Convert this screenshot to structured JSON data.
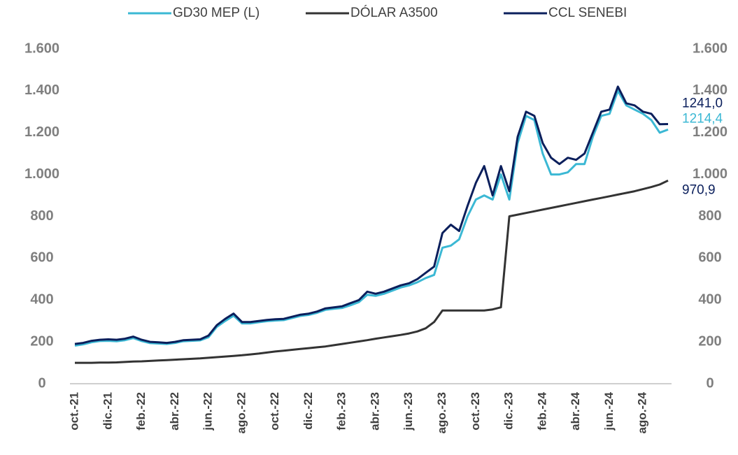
{
  "chart_data": {
    "type": "line",
    "categories": [
      "oct.-21",
      null,
      null,
      null,
      "dic.-21",
      null,
      null,
      null,
      "feb.-22",
      null,
      null,
      null,
      "abr.-22",
      null,
      null,
      null,
      "jun.-22",
      null,
      null,
      null,
      "ago.-22",
      null,
      null,
      null,
      "oct.-22",
      null,
      null,
      null,
      "dic.-22",
      null,
      null,
      null,
      "feb.-23",
      null,
      null,
      null,
      "abr.-23",
      null,
      null,
      null,
      "jun.-23",
      null,
      null,
      null,
      "ago.-23",
      null,
      null,
      null,
      "oct.-23",
      null,
      null,
      null,
      "dic.-23",
      null,
      null,
      null,
      "feb.-24",
      null,
      null,
      null,
      "abr.-24",
      null,
      null,
      null,
      "jun.-24",
      null,
      null,
      null,
      "ago.-24",
      null,
      null,
      null
    ],
    "series": [
      {
        "name": "GD30 MEP (L)",
        "color": "#3bb8d4",
        "values": [
          182,
          188,
          198,
          204,
          205,
          203,
          208,
          218,
          204,
          194,
          192,
          190,
          195,
          203,
          205,
          207,
          222,
          272,
          300,
          325,
          288,
          288,
          294,
          299,
          302,
          304,
          314,
          324,
          329,
          339,
          353,
          358,
          362,
          375,
          390,
          425,
          420,
          430,
          445,
          460,
          470,
          485,
          505,
          520,
          650,
          660,
          690,
          800,
          880,
          900,
          880,
          1000,
          880,
          1150,
          1280,
          1260,
          1100,
          1000,
          1000,
          1010,
          1050,
          1050,
          1180,
          1280,
          1290,
          1400,
          1330,
          1310,
          1290,
          1260,
          1200,
          1214.4
        ],
        "value_labels": [
          null,
          null,
          null,
          null,
          null,
          null,
          null,
          null,
          null,
          null,
          null,
          null,
          null,
          null,
          null,
          null,
          null,
          null,
          null,
          null,
          null,
          null,
          null,
          null,
          null,
          null,
          null,
          null,
          null,
          null,
          null,
          null,
          null,
          null,
          null,
          null,
          null,
          null,
          null,
          null,
          null,
          null,
          null,
          null,
          null,
          null,
          null,
          null,
          null,
          null,
          null,
          null,
          null,
          null,
          null,
          null,
          null,
          null,
          null,
          null,
          null,
          null,
          null,
          null,
          null,
          null,
          null,
          null,
          null,
          null,
          null,
          "1214,4"
        ]
      },
      {
        "name": "DÓLAR A3500",
        "color": "#333333",
        "values": [
          100,
          100,
          100,
          101,
          101,
          102,
          104,
          106,
          107,
          109,
          111,
          113,
          115,
          117,
          119,
          121,
          124,
          127,
          130,
          133,
          136,
          140,
          144,
          149,
          154,
          158,
          162,
          166,
          170,
          174,
          178,
          184,
          190,
          196,
          202,
          208,
          215,
          221,
          227,
          233,
          240,
          250,
          265,
          295,
          350,
          350,
          350,
          350,
          350,
          350,
          355,
          365,
          800,
          808,
          816,
          824,
          832,
          840,
          848,
          856,
          864,
          872,
          880,
          888,
          896,
          904,
          912,
          920,
          930,
          940,
          952,
          970.9
        ],
        "value_labels": [
          null,
          null,
          null,
          null,
          null,
          null,
          null,
          null,
          null,
          null,
          null,
          null,
          null,
          null,
          null,
          null,
          null,
          null,
          null,
          null,
          null,
          null,
          null,
          null,
          null,
          null,
          null,
          null,
          null,
          null,
          null,
          null,
          null,
          null,
          null,
          null,
          null,
          null,
          null,
          null,
          null,
          null,
          null,
          null,
          null,
          null,
          null,
          null,
          null,
          null,
          null,
          null,
          null,
          null,
          null,
          null,
          null,
          null,
          null,
          null,
          null,
          null,
          null,
          null,
          null,
          null,
          null,
          null,
          null,
          null,
          null,
          "970,9"
        ]
      },
      {
        "name": "CCL SENEBI",
        "color": "#0b1f5c",
        "values": [
          190,
          195,
          205,
          210,
          212,
          210,
          215,
          225,
          210,
          200,
          198,
          195,
          200,
          208,
          210,
          212,
          230,
          280,
          310,
          335,
          295,
          295,
          300,
          305,
          308,
          310,
          320,
          330,
          335,
          345,
          360,
          365,
          370,
          385,
          400,
          440,
          430,
          440,
          455,
          470,
          480,
          500,
          530,
          560,
          720,
          760,
          730,
          850,
          960,
          1040,
          900,
          1040,
          920,
          1180,
          1300,
          1280,
          1150,
          1080,
          1050,
          1080,
          1070,
          1100,
          1200,
          1300,
          1310,
          1420,
          1340,
          1330,
          1300,
          1290,
          1240,
          1241
        ],
        "value_labels": [
          null,
          null,
          null,
          null,
          null,
          null,
          null,
          null,
          null,
          null,
          null,
          null,
          null,
          null,
          null,
          null,
          null,
          null,
          null,
          null,
          null,
          null,
          null,
          null,
          null,
          null,
          null,
          null,
          null,
          null,
          null,
          null,
          null,
          null,
          null,
          null,
          null,
          null,
          null,
          null,
          null,
          null,
          null,
          null,
          null,
          null,
          null,
          null,
          null,
          null,
          null,
          null,
          null,
          null,
          null,
          null,
          null,
          null,
          null,
          null,
          null,
          null,
          null,
          null,
          null,
          null,
          null,
          null,
          null,
          null,
          null,
          "1241,0"
        ]
      }
    ],
    "ylim": [
      0,
      1600
    ],
    "yticks": [
      0,
      200,
      400,
      600,
      800,
      {
        "value": 1000,
        "label": "1.000"
      },
      {
        "value": 1200,
        "label": "1.200"
      },
      {
        "value": 1400,
        "label": "1.400"
      },
      {
        "value": 1600,
        "label": "1.600"
      }
    ],
    "y2lim": [
      0,
      1600
    ],
    "y2ticks": [
      0,
      200,
      400,
      600,
      800,
      {
        "value": 1000,
        "label": "1.000"
      },
      {
        "value": 1200,
        "label": "1.200"
      },
      {
        "value": 1400,
        "label": "1.400"
      },
      {
        "value": 1600,
        "label": "1.600"
      }
    ],
    "grid": false,
    "legend": "top"
  }
}
